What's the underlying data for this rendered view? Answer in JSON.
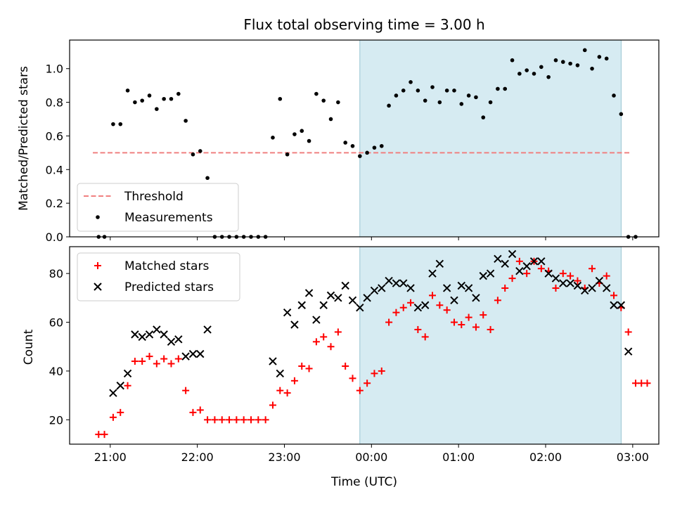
{
  "chart_data": [
    {
      "type": "scatter",
      "title": "Flux total observing time = 3.00 h",
      "ylabel": "Matched/Predicted stars",
      "xlabel": "",
      "xlim": [
        "20:32",
        "03:18"
      ],
      "ylim": [
        0,
        1.17
      ],
      "y_ticks": [
        "0.0",
        "0.2",
        "0.4",
        "0.6",
        "0.8",
        "1.0"
      ],
      "x_ticks": [
        "21:00",
        "22:00",
        "23:00",
        "00:00",
        "01:00",
        "02:00",
        "03:00"
      ],
      "grid": false,
      "legend_placement": "lower-left",
      "highlight_span": [
        "23:52",
        "02:52"
      ],
      "threshold": {
        "name": "Threshold",
        "y": 0.5,
        "x": [
          "20:48",
          "02:58"
        ],
        "color": "#f08080"
      },
      "series": [
        {
          "name": "Measurements",
          "color": "#000000",
          "points": [
            [
              "20:52",
              0.0
            ],
            [
              "20:56",
              0.0
            ],
            [
              "21:02",
              0.67
            ],
            [
              "21:07",
              0.67
            ],
            [
              "21:12",
              0.87
            ],
            [
              "21:17",
              0.8
            ],
            [
              "21:22",
              0.81
            ],
            [
              "21:27",
              0.84
            ],
            [
              "21:32",
              0.76
            ],
            [
              "21:37",
              0.82
            ],
            [
              "21:42",
              0.82
            ],
            [
              "21:47",
              0.85
            ],
            [
              "21:52",
              0.69
            ],
            [
              "21:57",
              0.49
            ],
            [
              "22:02",
              0.51
            ],
            [
              "22:07",
              0.35
            ],
            [
              "22:12",
              0.0
            ],
            [
              "22:17",
              0.0
            ],
            [
              "22:22",
              0.0
            ],
            [
              "22:27",
              0.0
            ],
            [
              "22:32",
              0.0
            ],
            [
              "22:37",
              0.0
            ],
            [
              "22:42",
              0.0
            ],
            [
              "22:47",
              0.0
            ],
            [
              "22:52",
              0.59
            ],
            [
              "22:57",
              0.82
            ],
            [
              "23:02",
              0.49
            ],
            [
              "23:07",
              0.61
            ],
            [
              "23:12",
              0.63
            ],
            [
              "23:17",
              0.57
            ],
            [
              "23:22",
              0.85
            ],
            [
              "23:27",
              0.81
            ],
            [
              "23:32",
              0.7
            ],
            [
              "23:37",
              0.8
            ],
            [
              "23:42",
              0.56
            ],
            [
              "23:47",
              0.54
            ],
            [
              "23:52",
              0.48
            ],
            [
              "23:57",
              0.5
            ],
            [
              "00:02",
              0.53
            ],
            [
              "00:07",
              0.54
            ],
            [
              "00:12",
              0.78
            ],
            [
              "00:17",
              0.84
            ],
            [
              "00:22",
              0.87
            ],
            [
              "00:27",
              0.92
            ],
            [
              "00:32",
              0.87
            ],
            [
              "00:37",
              0.81
            ],
            [
              "00:42",
              0.89
            ],
            [
              "00:47",
              0.8
            ],
            [
              "00:52",
              0.87
            ],
            [
              "00:57",
              0.87
            ],
            [
              "01:02",
              0.79
            ],
            [
              "01:07",
              0.84
            ],
            [
              "01:12",
              0.83
            ],
            [
              "01:17",
              0.71
            ],
            [
              "01:22",
              0.8
            ],
            [
              "01:27",
              0.88
            ],
            [
              "01:32",
              0.88
            ],
            [
              "01:37",
              1.05
            ],
            [
              "01:42",
              0.97
            ],
            [
              "01:47",
              0.99
            ],
            [
              "01:52",
              0.97
            ],
            [
              "01:57",
              1.01
            ],
            [
              "02:02",
              0.95
            ],
            [
              "02:07",
              1.05
            ],
            [
              "02:12",
              1.04
            ],
            [
              "02:17",
              1.03
            ],
            [
              "02:22",
              1.02
            ],
            [
              "02:27",
              1.11
            ],
            [
              "02:32",
              1.0
            ],
            [
              "02:37",
              1.07
            ],
            [
              "02:42",
              1.06
            ],
            [
              "02:47",
              0.84
            ],
            [
              "02:52",
              0.73
            ],
            [
              "02:57",
              0.0
            ],
            [
              "03:02",
              0.0
            ]
          ]
        }
      ],
      "legend": [
        {
          "label": "Threshold",
          "kind": "dash",
          "color": "#f08080"
        },
        {
          "label": "Measurements",
          "kind": "dot",
          "color": "#000000"
        }
      ]
    },
    {
      "type": "scatter",
      "title": "",
      "ylabel": "Count",
      "xlabel": "Time (UTC)",
      "xlim": [
        "20:32",
        "03:18"
      ],
      "ylim": [
        10,
        91
      ],
      "y_ticks": [
        "20",
        "40",
        "60",
        "80"
      ],
      "x_ticks": [
        "21:00",
        "22:00",
        "23:00",
        "00:00",
        "01:00",
        "02:00",
        "03:00"
      ],
      "grid": false,
      "legend_placement": "upper-left",
      "highlight_span": [
        "23:52",
        "02:52"
      ],
      "series": [
        {
          "name": "Matched stars",
          "marker": "plus",
          "color": "#ff0000",
          "points": [
            [
              "20:52",
              14
            ],
            [
              "20:56",
              14
            ],
            [
              "21:02",
              21
            ],
            [
              "21:07",
              23
            ],
            [
              "21:12",
              34
            ],
            [
              "21:17",
              44
            ],
            [
              "21:22",
              44
            ],
            [
              "21:27",
              46
            ],
            [
              "21:32",
              43
            ],
            [
              "21:37",
              45
            ],
            [
              "21:42",
              43
            ],
            [
              "21:47",
              45
            ],
            [
              "21:52",
              32
            ],
            [
              "21:57",
              23
            ],
            [
              "22:02",
              24
            ],
            [
              "22:07",
              20
            ],
            [
              "22:12",
              20
            ],
            [
              "22:17",
              20
            ],
            [
              "22:22",
              20
            ],
            [
              "22:27",
              20
            ],
            [
              "22:32",
              20
            ],
            [
              "22:37",
              20
            ],
            [
              "22:42",
              20
            ],
            [
              "22:47",
              20
            ],
            [
              "22:52",
              26
            ],
            [
              "22:57",
              32
            ],
            [
              "23:02",
              31
            ],
            [
              "23:07",
              36
            ],
            [
              "23:12",
              42
            ],
            [
              "23:17",
              41
            ],
            [
              "23:22",
              52
            ],
            [
              "23:27",
              54
            ],
            [
              "23:32",
              50
            ],
            [
              "23:37",
              56
            ],
            [
              "23:42",
              42
            ],
            [
              "23:47",
              37
            ],
            [
              "23:52",
              32
            ],
            [
              "23:57",
              35
            ],
            [
              "00:02",
              39
            ],
            [
              "00:07",
              40
            ],
            [
              "00:12",
              60
            ],
            [
              "00:17",
              64
            ],
            [
              "00:22",
              66
            ],
            [
              "00:27",
              68
            ],
            [
              "00:32",
              57
            ],
            [
              "00:37",
              54
            ],
            [
              "00:42",
              71
            ],
            [
              "00:47",
              67
            ],
            [
              "00:52",
              65
            ],
            [
              "00:57",
              60
            ],
            [
              "01:02",
              59
            ],
            [
              "01:07",
              62
            ],
            [
              "01:12",
              58
            ],
            [
              "01:17",
              63
            ],
            [
              "01:22",
              57
            ],
            [
              "01:27",
              69
            ],
            [
              "01:32",
              74
            ],
            [
              "01:37",
              78
            ],
            [
              "01:42",
              85
            ],
            [
              "01:47",
              80
            ],
            [
              "01:52",
              85
            ],
            [
              "01:57",
              82
            ],
            [
              "02:02",
              81
            ],
            [
              "02:07",
              74
            ],
            [
              "02:12",
              80
            ],
            [
              "02:17",
              79
            ],
            [
              "02:22",
              77
            ],
            [
              "02:27",
              74
            ],
            [
              "02:32",
              82
            ],
            [
              "02:37",
              76
            ],
            [
              "02:42",
              79
            ],
            [
              "02:47",
              71
            ],
            [
              "02:52",
              66
            ],
            [
              "02:57",
              56
            ],
            [
              "03:02",
              35
            ],
            [
              "03:06",
              35
            ],
            [
              "03:10",
              35
            ]
          ]
        },
        {
          "name": "Predicted stars",
          "marker": "x",
          "color": "#000000",
          "points": [
            [
              "21:02",
              31
            ],
            [
              "21:07",
              34
            ],
            [
              "21:12",
              39
            ],
            [
              "21:17",
              55
            ],
            [
              "21:22",
              54
            ],
            [
              "21:27",
              55
            ],
            [
              "21:32",
              57
            ],
            [
              "21:37",
              55
            ],
            [
              "21:42",
              52
            ],
            [
              "21:47",
              53
            ],
            [
              "21:52",
              46
            ],
            [
              "21:57",
              47
            ],
            [
              "22:02",
              47
            ],
            [
              "22:07",
              57
            ],
            [
              "22:52",
              44
            ],
            [
              "22:57",
              39
            ],
            [
              "23:02",
              64
            ],
            [
              "23:07",
              59
            ],
            [
              "23:12",
              67
            ],
            [
              "23:17",
              72
            ],
            [
              "23:22",
              61
            ],
            [
              "23:27",
              67
            ],
            [
              "23:32",
              71
            ],
            [
              "23:37",
              70
            ],
            [
              "23:42",
              75
            ],
            [
              "23:47",
              69
            ],
            [
              "23:52",
              66
            ],
            [
              "23:57",
              70
            ],
            [
              "00:02",
              73
            ],
            [
              "00:07",
              74
            ],
            [
              "00:12",
              77
            ],
            [
              "00:17",
              76
            ],
            [
              "00:22",
              76
            ],
            [
              "00:27",
              74
            ],
            [
              "00:32",
              66
            ],
            [
              "00:37",
              67
            ],
            [
              "00:42",
              80
            ],
            [
              "00:47",
              84
            ],
            [
              "00:52",
              74
            ],
            [
              "00:57",
              69
            ],
            [
              "01:02",
              75
            ],
            [
              "01:07",
              74
            ],
            [
              "01:12",
              70
            ],
            [
              "01:17",
              79
            ],
            [
              "01:22",
              80
            ],
            [
              "01:27",
              86
            ],
            [
              "01:32",
              84
            ],
            [
              "01:37",
              88
            ],
            [
              "01:42",
              81
            ],
            [
              "01:47",
              83
            ],
            [
              "01:52",
              85
            ],
            [
              "01:57",
              85
            ],
            [
              "02:02",
              80
            ],
            [
              "02:07",
              78
            ],
            [
              "02:12",
              76
            ],
            [
              "02:17",
              76
            ],
            [
              "02:22",
              75
            ],
            [
              "02:27",
              73
            ],
            [
              "02:32",
              74
            ],
            [
              "02:37",
              77
            ],
            [
              "02:42",
              74
            ],
            [
              "02:47",
              67
            ],
            [
              "02:52",
              67
            ],
            [
              "02:57",
              48
            ]
          ]
        }
      ],
      "legend": [
        {
          "label": "Matched stars",
          "kind": "plus",
          "color": "#ff0000"
        },
        {
          "label": "Predicted stars",
          "kind": "x",
          "color": "#000000"
        }
      ]
    }
  ],
  "colors": {
    "highlight": "#add8e6"
  }
}
